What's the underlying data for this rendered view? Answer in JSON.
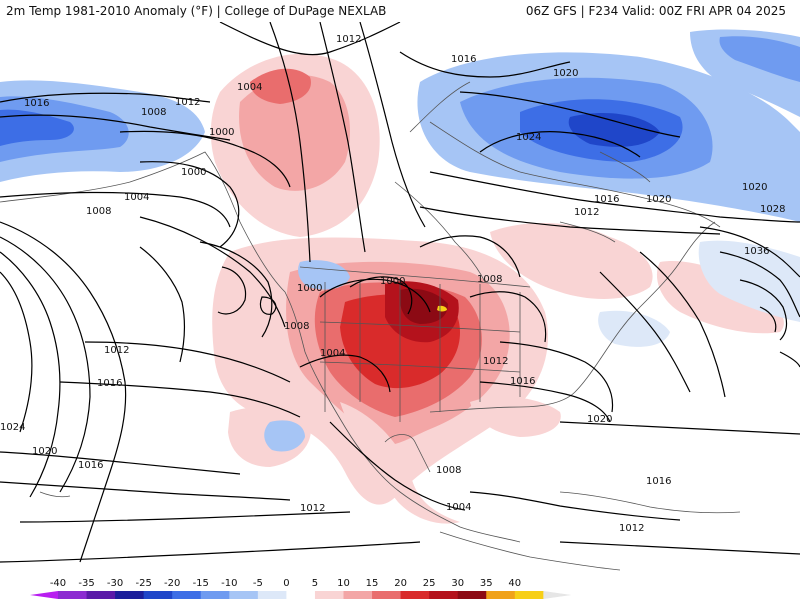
{
  "header": {
    "title_left": "2m Temp 1981-2010 Anomaly (°F) | College of DuPage NEXLAB",
    "title_right": "06Z GFS | F234 Valid: 00Z FRI APR 04 2025"
  },
  "isobars": {
    "labels": [
      "1012",
      "1016",
      "1020",
      "1016",
      "1004",
      "1008",
      "1012",
      "1000",
      "1000",
      "1004",
      "1008",
      "1024",
      "1020",
      "1016",
      "1012",
      "1012",
      "1016",
      "1020",
      "1024",
      "1012",
      "1016",
      "1020",
      "1028",
      "1036",
      "1000",
      "1000",
      "1008",
      "1004",
      "1008",
      "1012",
      "1016",
      "1008",
      "1004",
      "1020",
      "1016",
      "1012"
    ]
  },
  "legend": {
    "tick_labels": [
      "-40",
      "-35",
      "-30",
      "-25",
      "-20",
      "-15",
      "-10",
      "-5",
      "0",
      "5",
      "10",
      "15",
      "20",
      "25",
      "30",
      "35",
      "40"
    ],
    "colors": [
      "#b81ef0",
      "#8c2bd1",
      "#5b1aa8",
      "#1b1e9a",
      "#1f46c9",
      "#3d6ee6",
      "#6f9bf0",
      "#a6c5f5",
      "#dde8f8",
      "#ffffff",
      "#f9d4d4",
      "#f3a6a6",
      "#e96d6d",
      "#d92b2b",
      "#b4121c",
      "#8c0a14",
      "#f0a21a",
      "#f7cf17",
      "#e6e6e6"
    ],
    "note_colors": {
      "ocean": "#ffffff",
      "border": "#555555"
    }
  }
}
